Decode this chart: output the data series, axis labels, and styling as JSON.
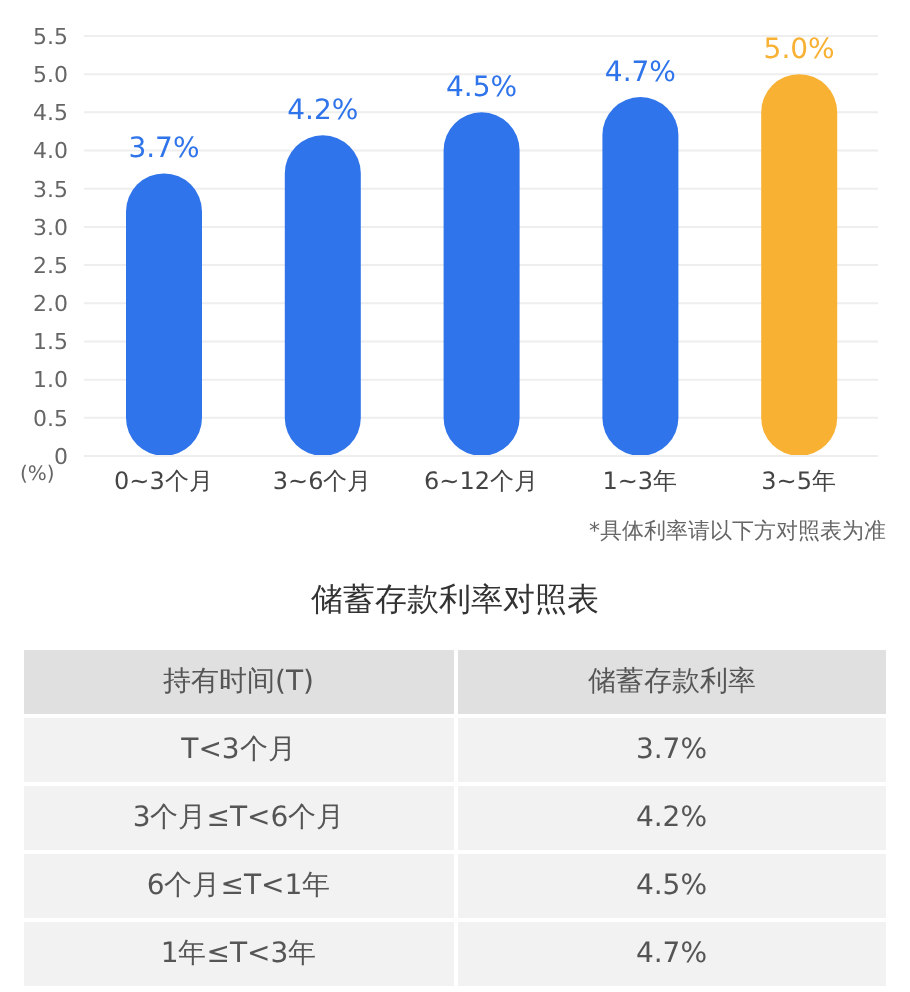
{
  "chart_data": [
    {
      "type": "bar",
      "ylabel": "(%)",
      "categories": [
        "0~3个月",
        "3~6个月",
        "6~12个月",
        "1~3年",
        "3~5年"
      ],
      "values": [
        3.7,
        4.2,
        4.5,
        4.7,
        5.0
      ],
      "colors": [
        "#2f74ea",
        "#2f74ea",
        "#2f74ea",
        "#2f74ea",
        "#f8b133"
      ],
      "value_labels": [
        "3.7%",
        "4.2%",
        "4.5%",
        "4.7%",
        "5.0%"
      ],
      "ylim": [
        0,
        5.5
      ],
      "yticks": [
        0,
        {
          "value": 0.5,
          "label": "0.5"
        },
        {
          "value": 1,
          "label": "1.0"
        },
        {
          "value": 1.5,
          "label": "1.5"
        },
        {
          "value": 2,
          "label": "2.0"
        },
        {
          "value": 2.5,
          "label": "2.5"
        },
        {
          "value": 3,
          "label": "3.0"
        },
        {
          "value": 3.5,
          "label": "3.5"
        },
        {
          "value": 4,
          "label": "4.0"
        },
        {
          "value": 4.5,
          "label": "4.5"
        },
        {
          "value": 5,
          "label": "5.0"
        },
        {
          "value": 5.5,
          "label": "5.5"
        }
      ],
      "grid": "y",
      "annotations": [
        "*具体利率请以下方对照表为准"
      ]
    },
    {
      "type": "other",
      "title": "储蓄存款利率对照表",
      "annotations": [
        "持有时间(T)",
        "储蓄存款利率",
        "T<3个月",
        "3.7%",
        "3个月≤T<6个月",
        "4.2%",
        "6个月≤T<1年",
        "4.5%",
        "1年≤T<3年",
        "4.7%"
      ]
    }
  ]
}
